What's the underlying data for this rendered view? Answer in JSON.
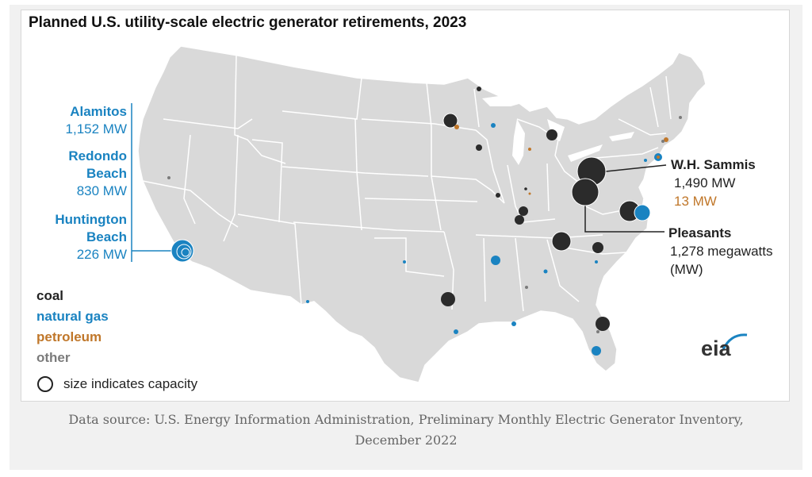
{
  "title": "Planned U.S. utility-scale electric generator retirements, 2023",
  "callouts_left": [
    {
      "name": "Alamitos",
      "value": "1,152 MW"
    },
    {
      "name_lines": [
        "Redondo",
        "Beach"
      ],
      "value": "830 MW"
    },
    {
      "name_lines": [
        "Huntington",
        "Beach"
      ],
      "value": "226 MW"
    }
  ],
  "callouts_right": {
    "sammis": {
      "name": "W.H. Sammis",
      "value_coal": "1,490 MW",
      "value_petroleum": "13 MW"
    },
    "pleasants": {
      "name": "Pleasants",
      "value_lines": [
        "1,278 megawatts",
        "(MW)"
      ]
    }
  },
  "legend": {
    "coal": "coal",
    "natural_gas": "natural gas",
    "petroleum": "petroleum",
    "other": "other",
    "size_note": "size indicates capacity"
  },
  "colors": {
    "coal": "#2b2b2b",
    "natural_gas": "#1a83c1",
    "petroleum": "#c0772a",
    "other": "#7b7b7b",
    "land": "#d9d9d9",
    "borders": "#ffffff"
  },
  "logo": "eia",
  "source_lines": [
    "Data source: U.S. Energy Information Administration, Preliminary Monthly Electric Generator Inventory,",
    "December 2022"
  ],
  "plants": [
    {
      "fuel": "coal",
      "size": "large",
      "location": "W.H. Sammis, Ohio"
    },
    {
      "fuel": "coal",
      "size": "large",
      "location": "Pleasants, West Virginia"
    },
    {
      "fuel": "natural_gas",
      "size": "large",
      "location": "Alamitos, California"
    },
    {
      "fuel": "natural_gas",
      "size": "medium",
      "location": "Redondo Beach, California"
    },
    {
      "fuel": "natural_gas",
      "size": "small",
      "location": "Huntington Beach, California"
    }
  ]
}
